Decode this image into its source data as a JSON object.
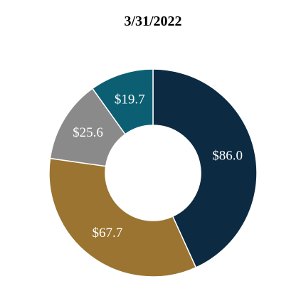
{
  "chart_data": {
    "type": "donut",
    "title": "3/31/2022",
    "values": [
      86.0,
      67.7,
      25.6,
      19.7
    ],
    "value_labels": [
      "$86.0",
      "$67.7",
      "$25.6",
      "$19.7"
    ],
    "colors": [
      "#0c2a42",
      "#9a7430",
      "#8a8a8a",
      "#0c5e72"
    ]
  }
}
